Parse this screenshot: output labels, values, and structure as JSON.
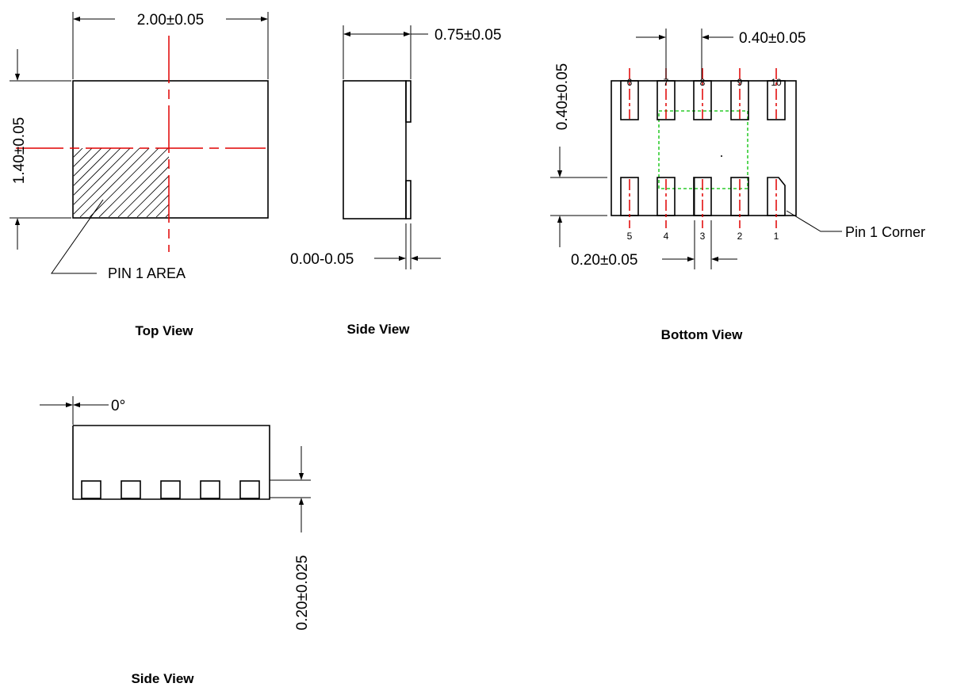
{
  "top_view": {
    "caption": "Top View",
    "width_dim": "2.00±0.05",
    "height_dim": "1.40±0.05",
    "pin1_label": "PIN 1 AREA"
  },
  "side_view_1": {
    "caption": "Side View",
    "thickness_dim": "0.75±0.05",
    "standoff_dim": "0.00-0.05"
  },
  "bottom_view": {
    "caption": "Bottom View",
    "pitch_dim": "0.40±0.05",
    "pad_length_dim": "0.40±0.05",
    "pad_width_dim": "0.20±0.05",
    "pin1_corner_label": "Pin 1 Corner",
    "top_pins": [
      "6",
      "7",
      "8",
      "9",
      "10"
    ],
    "bottom_pins": [
      "5",
      "4",
      "3",
      "2",
      "1"
    ]
  },
  "side_view_2": {
    "caption": "Side View",
    "angle_dim": "0°",
    "pad_height_dim": "0.20±0.025"
  },
  "colors": {
    "centerline": "#e00000",
    "pad_outline": "#00c000",
    "line": "#000000"
  }
}
